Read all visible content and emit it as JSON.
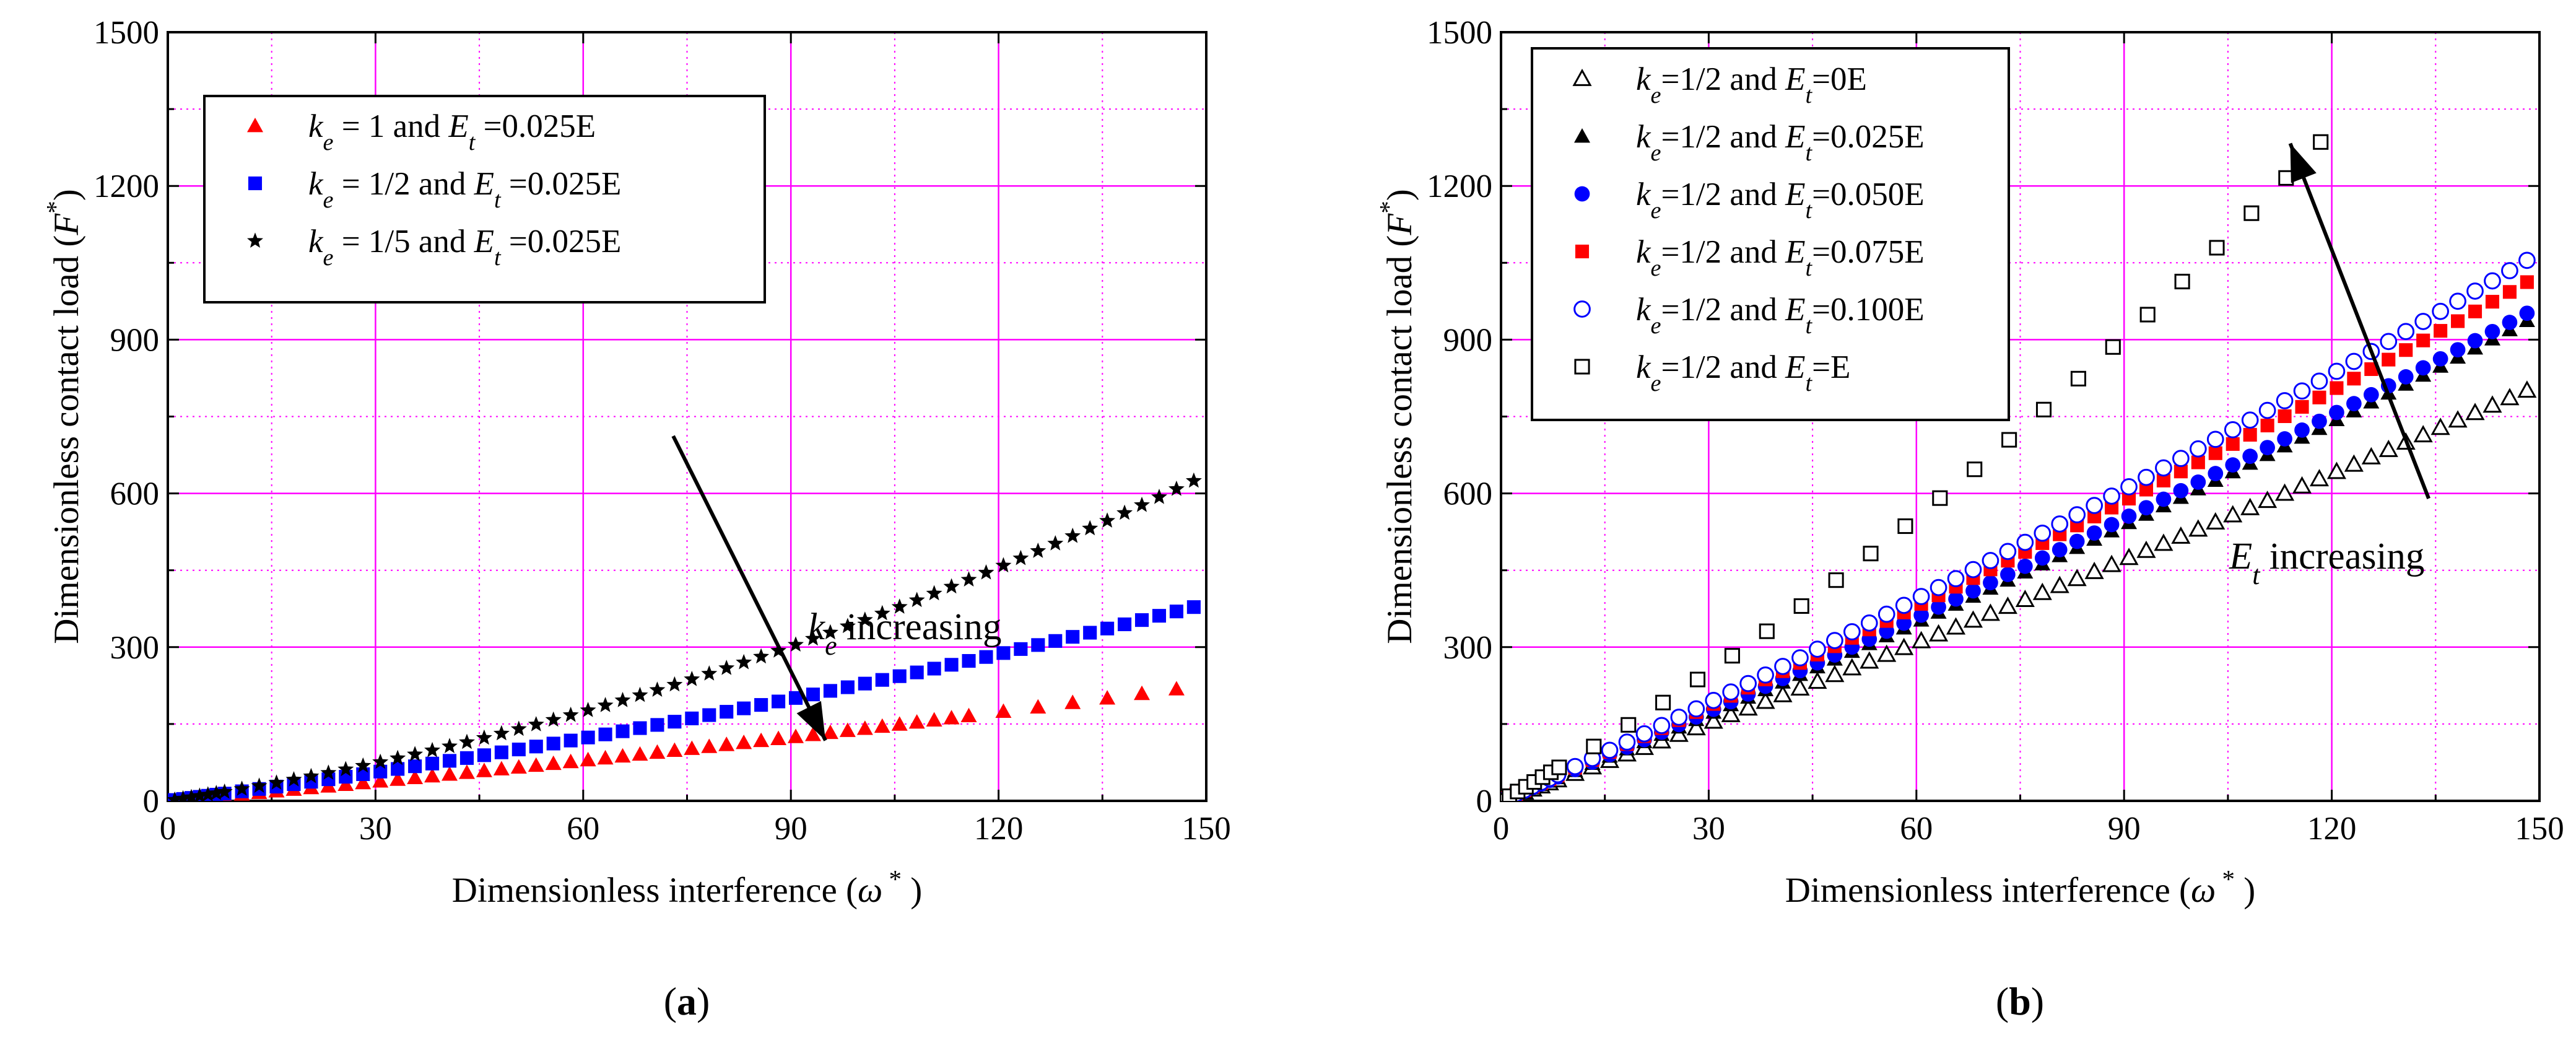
{
  "chart_data": [
    {
      "type": "scatter",
      "panel_label": "(a)",
      "xlabel": "Dimensionless interference (ω * )",
      "ylabel": "Dimensionless contact load (F * )",
      "xlim": [
        0,
        150
      ],
      "ylim": [
        0,
        1500
      ],
      "xticks": [
        "0",
        "30",
        "60",
        "90",
        "120",
        "150"
      ],
      "yticks": [
        "0",
        "300",
        "600",
        "900",
        "1200",
        "1500"
      ],
      "grid": true,
      "legend_position": "top-left",
      "series": [
        {
          "name": "k_e = 1 and E_t =0.025E",
          "marker": "triangle",
          "color": "#ff0000",
          "a": 0.55,
          "b": 0.75,
          "c": 1.45,
          "x_sparse_from": 115,
          "x_sparse_step": 5
        },
        {
          "name": "k_e = 1/2 and E_t =0.025E",
          "marker": "square",
          "color": "#0000ff",
          "a": 0.75,
          "b": 1.05,
          "c": 2.05
        },
        {
          "name": "k_e = 1/5 and E_t =0.025E",
          "marker": "star",
          "color": "#000000",
          "a": 1.35,
          "b": 1.25,
          "c": 2.45
        }
      ],
      "annotation": {
        "text_main": "k",
        "text_sub": "e",
        "text_rest": " increasing",
        "arrow_from": [
          73,
          712
        ],
        "arrow_to": [
          95,
          118
        ]
      }
    },
    {
      "type": "scatter",
      "panel_label": "(b)",
      "xlabel": "Dimensionless interference (ω * )",
      "ylabel": "Dimensionless contact load (F * )",
      "xlim": [
        0,
        150
      ],
      "ylim": [
        0,
        1500
      ],
      "xticks": [
        "0",
        "30",
        "60",
        "90",
        "120",
        "150"
      ],
      "yticks": [
        "0",
        "300",
        "600",
        "900",
        "1200",
        "1500"
      ],
      "grid": true,
      "legend_position": "top-left",
      "series": [
        {
          "name": "k_e=1/2 and E_t=0E",
          "marker": "triangle-open",
          "color": "#000000",
          "a": 0.5,
          "b": 1.0,
          "c": 6.05,
          "x_start": 1,
          "x_step": 2.5
        },
        {
          "name": "k_e=1/2 and E_t=0.025E",
          "marker": "triangle",
          "color": "#000000",
          "a": 0.75,
          "b": 1.05,
          "c": 6.65,
          "x_start": 1,
          "x_step": 2.5
        },
        {
          "name": "k_e=1/2 and E_t=0.050E",
          "marker": "circle",
          "color": "#0000ff",
          "a": 0.65,
          "b": 1.1,
          "c": 6.9,
          "x_start": 1,
          "x_step": 2.5
        },
        {
          "name": "k_e=1/2 and E_t=0.075E",
          "marker": "square",
          "color": "#ff0000",
          "a": 0.7,
          "b": 1.1,
          "c": 7.3,
          "x_start": 1,
          "x_step": 2.5
        },
        {
          "name": "k_e=1/2 and E_t=0.100E",
          "marker": "circle-open",
          "color": "#0000ff",
          "a": 0.75,
          "b": 1.1,
          "c": 7.55,
          "x_start": 1,
          "x_step": 2.5
        },
        {
          "name": "k_e=1/2 and E_t=E",
          "marker": "square-open",
          "color": "#000000",
          "a": 2.5,
          "b": 1.2,
          "c": 9.2,
          "x_start": 0,
          "x_step": 5,
          "x_max": 122
        }
      ],
      "annotation": {
        "text_main": "E",
        "text_sub": "t",
        "text_rest": " increasing",
        "arrow_from": [
          134,
          590
        ],
        "arrow_to": [
          114,
          1283
        ]
      }
    }
  ],
  "panels": [
    {
      "label": "(a)",
      "x_axis_label": "Dimensionless interference (ω * )",
      "y_axis_label": "Dimensionless contact load (F * )",
      "legend": [
        {
          "k": "k",
          "ksub": "e",
          "mid": " = 1 and ",
          "e": "E",
          "esub": "t",
          "tail": " =0.025E"
        },
        {
          "k": "k",
          "ksub": "e",
          "mid": " = 1/2 and ",
          "e": "E",
          "esub": "t",
          "tail": " =0.025E"
        },
        {
          "k": "k",
          "ksub": "e",
          "mid": " = 1/5 and ",
          "e": "E",
          "esub": "t",
          "tail": " =0.025E"
        }
      ],
      "annotation": "k e increasing"
    },
    {
      "label": "(b)",
      "x_axis_label": "Dimensionless interference (ω * )",
      "y_axis_label": "Dimensionless contact load (F * )",
      "legend": [
        {
          "k": "k",
          "ksub": "e",
          "mid": "=1/2 and ",
          "e": "E",
          "esub": "t",
          "tail": "=0E"
        },
        {
          "k": "k",
          "ksub": "e",
          "mid": "=1/2 and ",
          "e": "E",
          "esub": "t",
          "tail": "=0.025E"
        },
        {
          "k": "k",
          "ksub": "e",
          "mid": "=1/2 and ",
          "e": "E",
          "esub": "t",
          "tail": "=0.050E"
        },
        {
          "k": "k",
          "ksub": "e",
          "mid": "=1/2 and ",
          "e": "E",
          "esub": "t",
          "tail": "=0.075E"
        },
        {
          "k": "k",
          "ksub": "e",
          "mid": "=1/2 and ",
          "e": "E",
          "esub": "t",
          "tail": "=0.100E"
        },
        {
          "k": "k",
          "ksub": "e",
          "mid": "=1/2 and ",
          "e": "E",
          "esub": "t",
          "tail": "=E"
        }
      ],
      "annotation": "E t increasing"
    }
  ],
  "colors": {
    "grid": "#ff00ff",
    "axis": "#000000",
    "red": "#ff0000",
    "blue": "#0000ff",
    "black": "#000000"
  }
}
